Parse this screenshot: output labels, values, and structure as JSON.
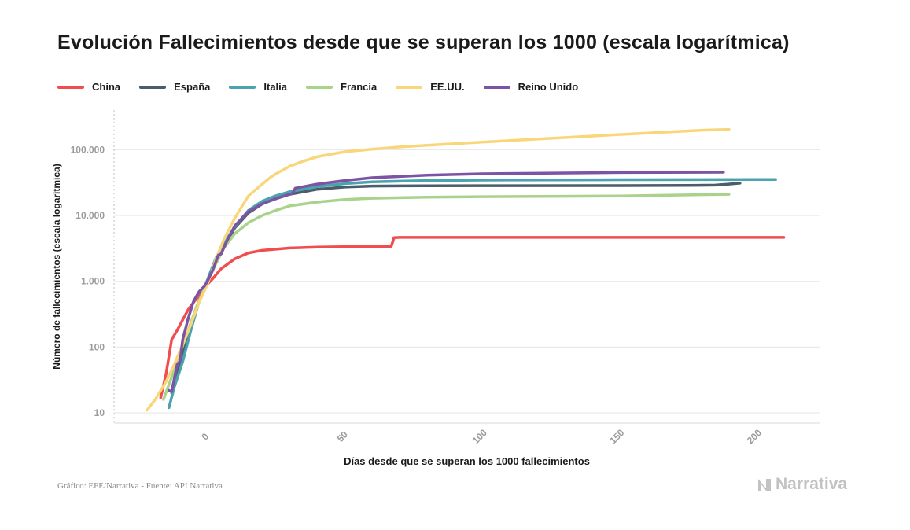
{
  "title": "Evolución Fallecimientos desde que se superan los 1000 (escala logarítmica)",
  "footer": {
    "source": "Gráfico: EFE/Narrativa - Fuente: API Narrativa",
    "brand": "Narrativa"
  },
  "chart_data": {
    "type": "line",
    "title": "Evolución Fallecimientos desde que se superan los 1000 (escala logarítmica)",
    "xlabel": "Días desde que se superan los 1000 fallecimientos",
    "ylabel": "Número de fallecimientos (escala logarítmica)",
    "y_scale": "log",
    "xlim": [
      -34,
      223
    ],
    "ylim": [
      7,
      400000
    ],
    "x_ticks": [
      0,
      50,
      100,
      150,
      200
    ],
    "x_tick_labels": [
      "0",
      "50",
      "100",
      "150",
      "200"
    ],
    "y_ticks": [
      10,
      100,
      1000,
      10000,
      100000
    ],
    "y_tick_labels": [
      "10",
      "100",
      "1.000",
      "10.000",
      "100.000"
    ],
    "grid": "horizontal",
    "legend_position": "top-left",
    "series": [
      {
        "name": "China",
        "color": "#f04e4e",
        "x": [
          -17,
          -15,
          -13,
          -11,
          -9,
          -7,
          -5,
          -3,
          -1,
          0,
          2,
          5,
          10,
          15,
          20,
          30,
          40,
          50,
          60,
          67,
          68,
          70,
          100,
          150,
          200,
          210
        ],
        "y": [
          17,
          40,
          130,
          180,
          260,
          370,
          480,
          610,
          770,
          900,
          1100,
          1550,
          2200,
          2700,
          2950,
          3200,
          3300,
          3350,
          3380,
          3400,
          4600,
          4640,
          4640,
          4640,
          4650,
          4650
        ]
      },
      {
        "name": "España",
        "color": "#4b5c6b",
        "x": [
          -13,
          -10,
          -7,
          -4,
          -2,
          0,
          3,
          6,
          10,
          15,
          20,
          25,
          30,
          40,
          50,
          60,
          80,
          100,
          150,
          175,
          185,
          190,
          194
        ],
        "y": [
          20,
          55,
          160,
          400,
          640,
          1000,
          2000,
          3400,
          6500,
          11000,
          15000,
          18500,
          21000,
          25000,
          27000,
          28000,
          28300,
          28400,
          28500,
          28700,
          29000,
          30000,
          31000
        ]
      },
      {
        "name": "Italia",
        "color": "#4aa3ad",
        "x": [
          -14,
          -12,
          -9,
          -6,
          -3,
          0,
          3,
          6,
          10,
          15,
          20,
          25,
          30,
          40,
          50,
          60,
          80,
          100,
          150,
          200,
          207
        ],
        "y": [
          12,
          25,
          60,
          180,
          500,
          1050,
          2200,
          3700,
          6800,
          12000,
          16500,
          20000,
          23000,
          27500,
          30500,
          32500,
          34000,
          34500,
          35000,
          35300,
          35300
        ]
      },
      {
        "name": "Francia",
        "color": "#a9d28a",
        "x": [
          -16,
          -13,
          -10,
          -7,
          -4,
          -1,
          0,
          3,
          6,
          10,
          15,
          20,
          25,
          30,
          40,
          50,
          60,
          80,
          100,
          150,
          190
        ],
        "y": [
          16,
          35,
          80,
          180,
          400,
          800,
          950,
          1800,
          3200,
          5300,
          7800,
          10000,
          12000,
          14000,
          16000,
          17500,
          18300,
          19000,
          19300,
          19800,
          21000
        ]
      },
      {
        "name": "EE.UU.",
        "color": "#f9d679",
        "x": [
          -22,
          -19,
          -15,
          -12,
          -9,
          -6,
          -3,
          0,
          3,
          6,
          10,
          15,
          20,
          23,
          25,
          30,
          35,
          40,
          50,
          60,
          70,
          80,
          100,
          120,
          150,
          180,
          190
        ],
        "y": [
          11,
          16,
          30,
          55,
          110,
          220,
          480,
          900,
          2100,
          4300,
          9200,
          20000,
          30000,
          38000,
          43000,
          56000,
          67000,
          78000,
          93000,
          102000,
          110000,
          117000,
          130000,
          145000,
          170000,
          198000,
          203000
        ]
      },
      {
        "name": "Reino Unido",
        "color": "#7d53a5",
        "x": [
          -14,
          -13,
          -11,
          -10,
          -9,
          -7,
          -5,
          -3,
          -1,
          0,
          2,
          4,
          5,
          7,
          10,
          15,
          20,
          25,
          30,
          31,
          32,
          40,
          50,
          60,
          80,
          100,
          150,
          188
        ],
        "y": [
          22,
          21,
          55,
          60,
          130,
          270,
          500,
          700,
          850,
          1000,
          1500,
          2500,
          2600,
          4000,
          7000,
          11500,
          15000,
          18000,
          21000,
          21500,
          26000,
          30000,
          34000,
          37500,
          41000,
          43000,
          45000,
          45500
        ]
      }
    ]
  }
}
